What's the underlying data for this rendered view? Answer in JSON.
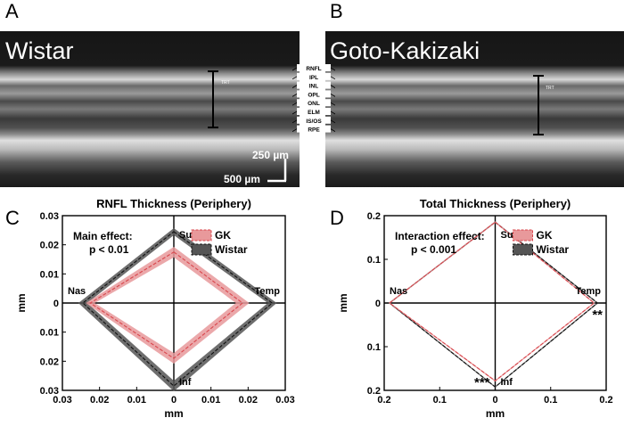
{
  "panels": {
    "a": {
      "letter": "A",
      "title": "Wistar",
      "trt": "TRT",
      "scale_vertical": "250 µm",
      "scale_horizontal": "500 µm"
    },
    "b": {
      "letter": "B",
      "title": "Goto-Kakizaki",
      "trt": "TRT"
    },
    "c": {
      "letter": "C"
    },
    "d": {
      "letter": "D"
    }
  },
  "layers": [
    "RNFL",
    "IPL",
    "INL",
    "OPL",
    "ONL",
    "ELM",
    "IS/OS",
    "RPE"
  ],
  "colors": {
    "gk": "#e8999b",
    "gk_line": "#d9474d",
    "wistar": "#555555",
    "wistar_line": "#111111"
  },
  "chart_data": [
    {
      "type": "radar",
      "title": "RNFL Thickness (Periphery)",
      "xlabel": "mm",
      "ylabel": "mm",
      "lim": 0.03,
      "x_ticks": [
        "0.03",
        "0.02",
        "0.01",
        "0",
        "0.01",
        "0.02",
        "0.03"
      ],
      "y_ticks": [
        "0.03",
        "0.02",
        "0.01",
        "0",
        "0.01",
        "0.02",
        "0.03"
      ],
      "directions": [
        "Sup",
        "Temp",
        "Inf",
        "Nas"
      ],
      "annotation": [
        "Main effect:",
        "p < 0.01"
      ],
      "markers": [],
      "legend_position": "top-right",
      "series": [
        {
          "name": "GK",
          "values": [
            0.0175,
            0.0185,
            0.019,
            0.0225
          ],
          "band": [
            0.0018,
            0.0018,
            0.0018,
            0.0012
          ]
        },
        {
          "name": "Wistar",
          "values": [
            0.0245,
            0.0265,
            0.0285,
            0.0245
          ],
          "band": [
            0.0012,
            0.0012,
            0.0018,
            0.0012
          ]
        }
      ]
    },
    {
      "type": "radar",
      "title": "Total Thickness (Periphery)",
      "xlabel": "mm",
      "ylabel": "mm",
      "lim": 0.23,
      "x_ticks": [
        "0.2",
        "0.1",
        "0",
        "0.1",
        "0.2"
      ],
      "y_ticks": [
        "0.2",
        "0.1",
        "0",
        "0.1",
        "0.2"
      ],
      "directions": [
        "Sup",
        "Temp",
        "Inf",
        "Nas"
      ],
      "annotation": [
        "Interaction effect:",
        "p < 0.001"
      ],
      "markers": [
        {
          "text": "**",
          "direction": "Temp"
        },
        {
          "text": "***",
          "direction": "Inf"
        }
      ],
      "legend_position": "top-right",
      "series": [
        {
          "name": "GK",
          "values": [
            0.213,
            0.205,
            0.205,
            0.219
          ],
          "band": [
            0.002,
            0.002,
            0.002,
            0.002
          ]
        },
        {
          "name": "Wistar",
          "values": [
            0.213,
            0.212,
            0.221,
            0.219
          ],
          "band": [
            0.002,
            0.002,
            0.002,
            0.002
          ]
        }
      ]
    }
  ]
}
